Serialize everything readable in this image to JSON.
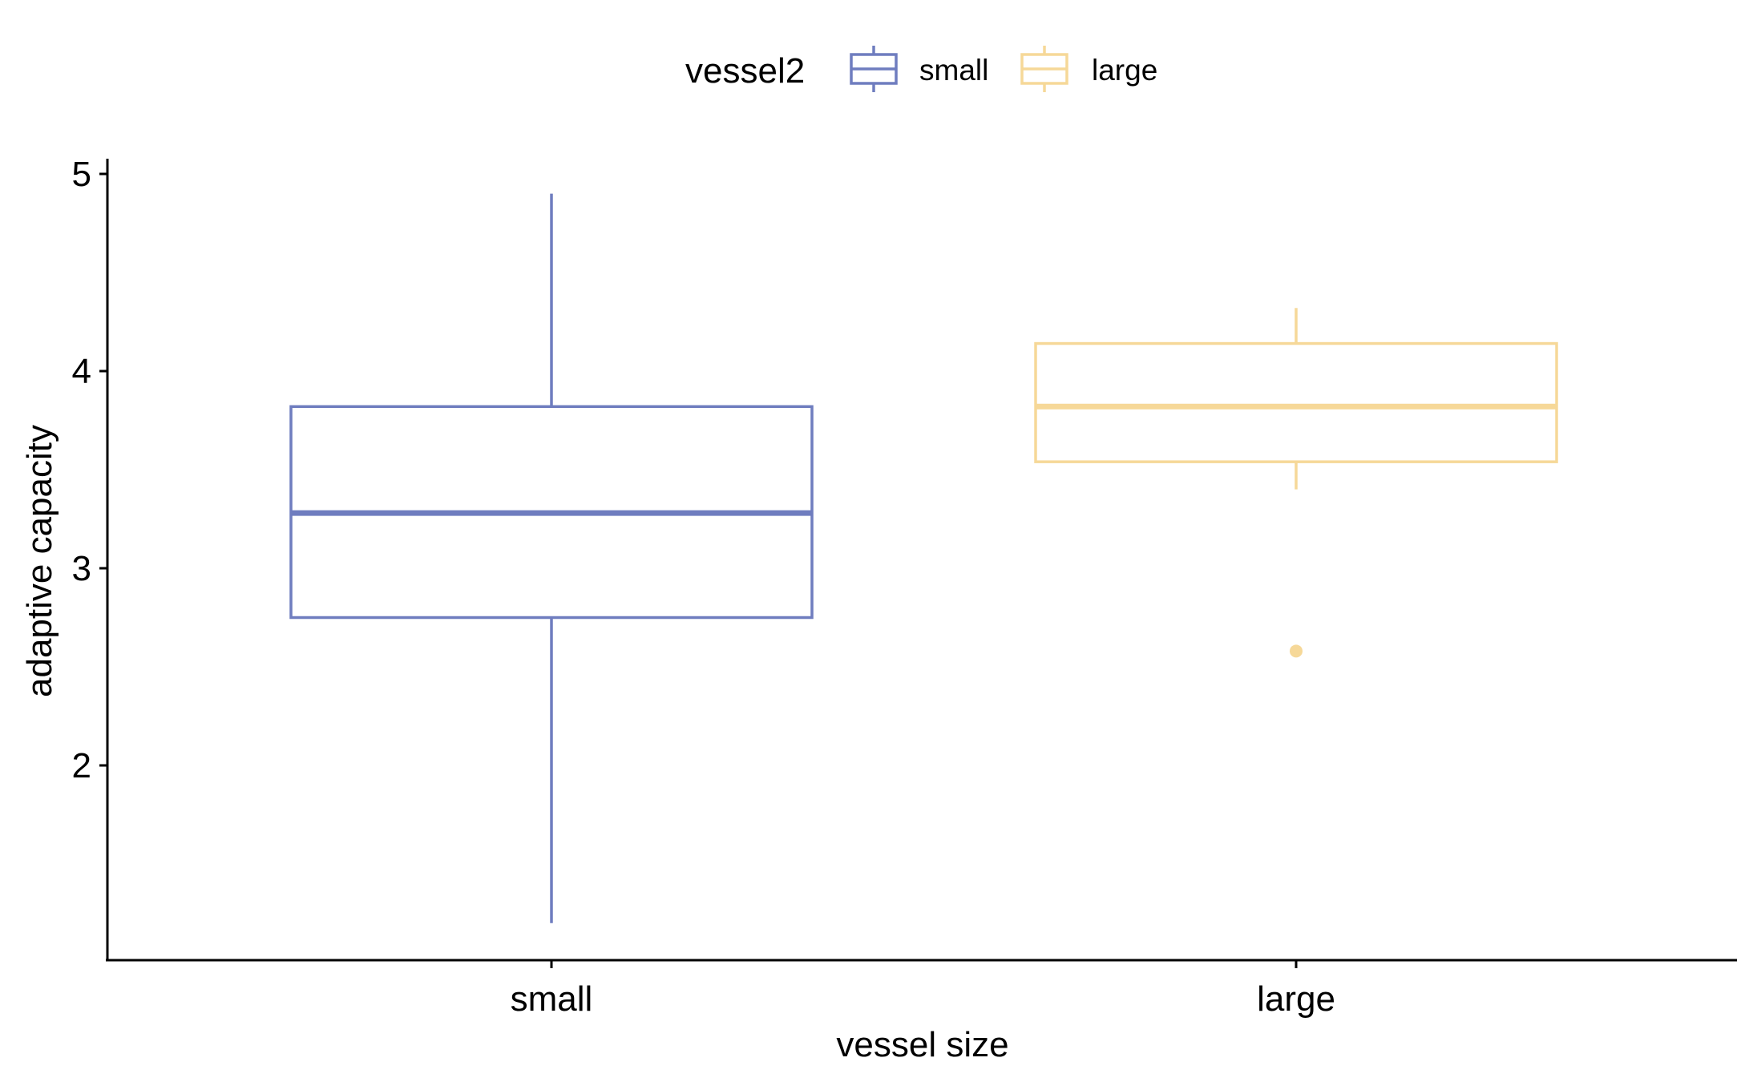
{
  "chart_data": {
    "type": "boxplot",
    "title": "",
    "xlabel": "vessel size",
    "ylabel": "adaptive capacity",
    "ylim": [
      1.0,
      5.05
    ],
    "yticks": [
      "2",
      "3",
      "4",
      "5"
    ],
    "grid": false,
    "legend": {
      "title": "vessel2",
      "position": "top",
      "entries": [
        "small",
        "large"
      ]
    },
    "categories": [
      "small",
      "large"
    ],
    "series": [
      {
        "name": "small",
        "color": "#6F7DBF",
        "whisker_low": 1.2,
        "q1": 2.75,
        "median": 3.28,
        "q3": 3.82,
        "whisker_high": 4.9,
        "outliers": []
      },
      {
        "name": "large",
        "color": "#F6D898",
        "whisker_low": 3.4,
        "q1": 3.54,
        "median": 3.82,
        "q3": 4.14,
        "whisker_high": 4.32,
        "outliers": [
          2.58
        ]
      }
    ]
  }
}
